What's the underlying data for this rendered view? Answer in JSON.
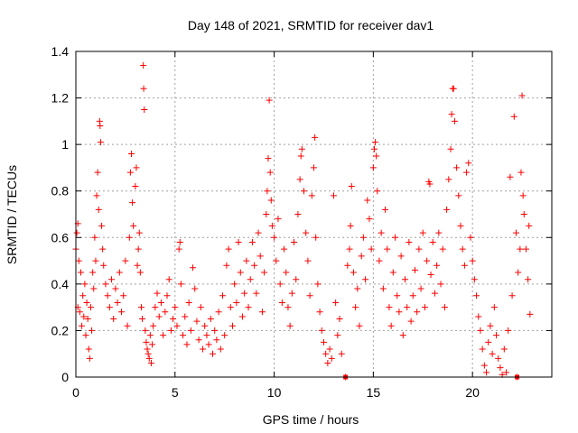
{
  "chart_data": {
    "type": "scatter",
    "title": "Day 148 of 2021, SRMTID for receiver dav1",
    "xlabel": "GPS time / hours",
    "ylabel": "SRMTID / TECUs",
    "xlim": [
      0,
      24
    ],
    "ylim": [
      0,
      1.4
    ],
    "xticks": [
      0,
      5,
      10,
      15,
      20
    ],
    "yticks": [
      0,
      0.2,
      0.4,
      0.6,
      0.8,
      1,
      1.2,
      1.4
    ],
    "xtick_labels": [
      "0",
      "5",
      "10",
      "15",
      "20"
    ],
    "ytick_labels": [
      "0",
      "0.2",
      "0.4",
      "0.6",
      "0.8",
      "1",
      "1.2",
      "1.4"
    ],
    "grid": true,
    "marker": "plus",
    "series": [
      {
        "name": "SRMTID",
        "color": "#ff0000",
        "points": [
          [
            0.0,
            0.55
          ],
          [
            0.05,
            0.62
          ],
          [
            0.1,
            0.66
          ],
          [
            0.1,
            0.3
          ],
          [
            0.15,
            0.5
          ],
          [
            0.2,
            0.28
          ],
          [
            0.25,
            0.45
          ],
          [
            0.3,
            0.22
          ],
          [
            0.35,
            0.35
          ],
          [
            0.4,
            0.26
          ],
          [
            0.45,
            0.4
          ],
          [
            0.5,
            0.18
          ],
          [
            0.55,
            0.32
          ],
          [
            0.6,
            0.25
          ],
          [
            0.65,
            0.12
          ],
          [
            0.7,
            0.08
          ],
          [
            0.75,
            0.3
          ],
          [
            0.8,
            0.2
          ],
          [
            0.85,
            0.45
          ],
          [
            0.9,
            0.38
          ],
          [
            0.95,
            0.6
          ],
          [
            1.0,
            0.5
          ],
          [
            1.05,
            0.78
          ],
          [
            1.1,
            0.88
          ],
          [
            1.15,
            0.72
          ],
          [
            1.2,
            1.1
          ],
          [
            1.22,
            1.08
          ],
          [
            1.25,
            1.01
          ],
          [
            1.3,
            0.65
          ],
          [
            1.35,
            0.55
          ],
          [
            1.4,
            0.48
          ],
          [
            1.5,
            0.4
          ],
          [
            1.6,
            0.35
          ],
          [
            1.7,
            0.3
          ],
          [
            1.8,
            0.42
          ],
          [
            1.9,
            0.25
          ],
          [
            2.0,
            0.38
          ],
          [
            2.1,
            0.32
          ],
          [
            2.2,
            0.45
          ],
          [
            2.3,
            0.28
          ],
          [
            2.4,
            0.35
          ],
          [
            2.5,
            0.5
          ],
          [
            2.6,
            0.22
          ],
          [
            2.7,
            0.6
          ],
          [
            2.75,
            0.88
          ],
          [
            2.8,
            0.96
          ],
          [
            2.85,
            0.75
          ],
          [
            2.9,
            0.65
          ],
          [
            3.0,
            0.82
          ],
          [
            3.05,
            0.9
          ],
          [
            3.1,
            0.48
          ],
          [
            3.15,
            0.55
          ],
          [
            3.2,
            0.62
          ],
          [
            3.25,
            0.45
          ],
          [
            3.3,
            0.3
          ],
          [
            3.35,
            0.25
          ],
          [
            3.4,
            1.34
          ],
          [
            3.42,
            1.24
          ],
          [
            3.45,
            1.15
          ],
          [
            3.5,
            0.2
          ],
          [
            3.55,
            0.15
          ],
          [
            3.6,
            0.12
          ],
          [
            3.65,
            0.1
          ],
          [
            3.7,
            0.08
          ],
          [
            3.75,
            0.18
          ],
          [
            3.8,
            0.06
          ],
          [
            3.85,
            0.14
          ],
          [
            3.9,
            0.22
          ],
          [
            4.0,
            0.3
          ],
          [
            4.1,
            0.36
          ],
          [
            4.2,
            0.26
          ],
          [
            4.3,
            0.32
          ],
          [
            4.4,
            0.18
          ],
          [
            4.5,
            0.28
          ],
          [
            4.6,
            0.35
          ],
          [
            4.7,
            0.42
          ],
          [
            4.8,
            0.2
          ],
          [
            4.9,
            0.25
          ],
          [
            5.0,
            0.3
          ],
          [
            5.1,
            0.22
          ],
          [
            5.2,
            0.55
          ],
          [
            5.25,
            0.58
          ],
          [
            5.3,
            0.4
          ],
          [
            5.4,
            0.18
          ],
          [
            5.5,
            0.26
          ],
          [
            5.6,
            0.14
          ],
          [
            5.7,
            0.32
          ],
          [
            5.8,
            0.2
          ],
          [
            5.9,
            0.47
          ],
          [
            6.0,
            0.38
          ],
          [
            6.1,
            0.24
          ],
          [
            6.2,
            0.16
          ],
          [
            6.3,
            0.3
          ],
          [
            6.4,
            0.12
          ],
          [
            6.5,
            0.22
          ],
          [
            6.6,
            0.18
          ],
          [
            6.7,
            0.14
          ],
          [
            6.8,
            0.25
          ],
          [
            6.9,
            0.1
          ],
          [
            7.0,
            0.2
          ],
          [
            7.1,
            0.16
          ],
          [
            7.2,
            0.28
          ],
          [
            7.3,
            0.12
          ],
          [
            7.4,
            0.35
          ],
          [
            7.5,
            0.18
          ],
          [
            7.6,
            0.48
          ],
          [
            7.7,
            0.55
          ],
          [
            7.8,
            0.3
          ],
          [
            7.9,
            0.22
          ],
          [
            8.0,
            0.4
          ],
          [
            8.1,
            0.32
          ],
          [
            8.2,
            0.58
          ],
          [
            8.3,
            0.45
          ],
          [
            8.4,
            0.26
          ],
          [
            8.5,
            0.36
          ],
          [
            8.6,
            0.5
          ],
          [
            8.7,
            0.3
          ],
          [
            8.8,
            0.42
          ],
          [
            8.9,
            0.58
          ],
          [
            9.0,
            0.48
          ],
          [
            9.1,
            0.36
          ],
          [
            9.2,
            0.62
          ],
          [
            9.3,
            0.52
          ],
          [
            9.4,
            0.28
          ],
          [
            9.5,
            0.45
          ],
          [
            9.6,
            0.7
          ],
          [
            9.65,
            0.8
          ],
          [
            9.7,
            0.94
          ],
          [
            9.75,
            1.19
          ],
          [
            9.8,
            0.88
          ],
          [
            9.85,
            0.76
          ],
          [
            9.9,
            0.65
          ],
          [
            10.0,
            0.6
          ],
          [
            10.1,
            0.5
          ],
          [
            10.2,
            0.68
          ],
          [
            10.3,
            0.4
          ],
          [
            10.4,
            0.32
          ],
          [
            10.5,
            0.55
          ],
          [
            10.6,
            0.45
          ],
          [
            10.7,
            0.3
          ],
          [
            10.8,
            0.22
          ],
          [
            10.9,
            0.36
          ],
          [
            11.0,
            0.58
          ],
          [
            11.1,
            0.42
          ],
          [
            11.2,
            0.7
          ],
          [
            11.3,
            0.85
          ],
          [
            11.35,
            0.95
          ],
          [
            11.4,
            0.98
          ],
          [
            11.5,
            0.8
          ],
          [
            11.6,
            0.62
          ],
          [
            11.7,
            0.5
          ],
          [
            11.8,
            0.35
          ],
          [
            11.9,
            0.78
          ],
          [
            12.0,
            0.9
          ],
          [
            12.05,
            1.03
          ],
          [
            12.1,
            0.6
          ],
          [
            12.2,
            0.4
          ],
          [
            12.3,
            0.28
          ],
          [
            12.4,
            0.2
          ],
          [
            12.5,
            0.15
          ],
          [
            12.6,
            0.1
          ],
          [
            12.7,
            0.06
          ],
          [
            12.8,
            0.12
          ],
          [
            12.9,
            0.08
          ],
          [
            13.0,
            0.78
          ],
          [
            13.1,
            0.32
          ],
          [
            13.2,
            0.18
          ],
          [
            13.3,
            0.25
          ],
          [
            13.4,
            0.1
          ],
          [
            13.6,
            0.0
          ],
          [
            13.7,
            0.48
          ],
          [
            13.8,
            0.55
          ],
          [
            13.85,
            0.65
          ],
          [
            13.9,
            0.82
          ],
          [
            14.0,
            0.45
          ],
          [
            14.1,
            0.3
          ],
          [
            14.2,
            0.38
          ],
          [
            14.3,
            0.22
          ],
          [
            14.4,
            0.52
          ],
          [
            14.5,
            0.6
          ],
          [
            14.6,
            0.42
          ],
          [
            14.7,
            0.76
          ],
          [
            14.8,
            0.68
          ],
          [
            14.9,
            0.55
          ],
          [
            15.0,
            0.9
          ],
          [
            15.05,
            0.98
          ],
          [
            15.1,
            1.01
          ],
          [
            15.15,
            0.95
          ],
          [
            15.2,
            0.8
          ],
          [
            15.3,
            0.5
          ],
          [
            15.4,
            0.62
          ],
          [
            15.5,
            0.38
          ],
          [
            15.6,
            0.72
          ],
          [
            15.7,
            0.55
          ],
          [
            15.8,
            0.3
          ],
          [
            15.9,
            0.22
          ],
          [
            16.0,
            0.45
          ],
          [
            16.1,
            0.6
          ],
          [
            16.2,
            0.35
          ],
          [
            16.3,
            0.28
          ],
          [
            16.4,
            0.52
          ],
          [
            16.5,
            0.18
          ],
          [
            16.6,
            0.42
          ],
          [
            16.7,
            0.3
          ],
          [
            16.8,
            0.58
          ],
          [
            16.9,
            0.24
          ],
          [
            17.0,
            0.35
          ],
          [
            17.1,
            0.46
          ],
          [
            17.2,
            0.28
          ],
          [
            17.3,
            0.55
          ],
          [
            17.4,
            0.38
          ],
          [
            17.5,
            0.62
          ],
          [
            17.6,
            0.3
          ],
          [
            17.7,
            0.5
          ],
          [
            17.8,
            0.84
          ],
          [
            17.85,
            0.83
          ],
          [
            17.9,
            0.44
          ],
          [
            18.0,
            0.58
          ],
          [
            18.1,
            0.36
          ],
          [
            18.2,
            0.48
          ],
          [
            18.3,
            0.62
          ],
          [
            18.4,
            0.4
          ],
          [
            18.5,
            0.55
          ],
          [
            18.6,
            0.3
          ],
          [
            18.7,
            0.72
          ],
          [
            18.8,
            0.85
          ],
          [
            18.9,
            0.98
          ],
          [
            18.95,
            1.13
          ],
          [
            19.0,
            1.24
          ],
          [
            19.05,
            1.24
          ],
          [
            19.1,
            1.1
          ],
          [
            19.2,
            0.9
          ],
          [
            19.3,
            0.78
          ],
          [
            19.4,
            0.65
          ],
          [
            19.5,
            0.55
          ],
          [
            19.6,
            0.48
          ],
          [
            19.7,
            0.88
          ],
          [
            19.8,
            0.92
          ],
          [
            19.9,
            0.6
          ],
          [
            20.0,
            0.5
          ],
          [
            20.1,
            0.42
          ],
          [
            20.2,
            0.35
          ],
          [
            20.3,
            0.26
          ],
          [
            20.4,
            0.2
          ],
          [
            20.5,
            0.12
          ],
          [
            20.6,
            0.05
          ],
          [
            20.7,
            0.02
          ],
          [
            20.8,
            0.15
          ],
          [
            20.9,
            0.22
          ],
          [
            21.0,
            0.1
          ],
          [
            21.1,
            0.3
          ],
          [
            21.2,
            0.18
          ],
          [
            21.3,
            0.08
          ],
          [
            21.4,
            0.04
          ],
          [
            21.5,
            0.01
          ],
          [
            21.6,
            0.12
          ],
          [
            21.7,
            0.02
          ],
          [
            21.8,
            0.2
          ],
          [
            21.9,
            0.86
          ],
          [
            22.0,
            0.35
          ],
          [
            22.1,
            1.12
          ],
          [
            22.2,
            0.62
          ],
          [
            22.25,
            0.0
          ],
          [
            22.3,
            0.45
          ],
          [
            22.4,
            0.55
          ],
          [
            22.45,
            0.88
          ],
          [
            22.5,
            1.21
          ],
          [
            22.55,
            0.78
          ],
          [
            22.6,
            0.7
          ],
          [
            22.7,
            0.55
          ],
          [
            22.8,
            0.42
          ],
          [
            22.85,
            0.65
          ],
          [
            22.9,
            0.27
          ]
        ]
      }
    ],
    "special_markers": [
      {
        "x": 13.6,
        "y": 0.0
      },
      {
        "x": 22.25,
        "y": 0.0
      }
    ]
  }
}
